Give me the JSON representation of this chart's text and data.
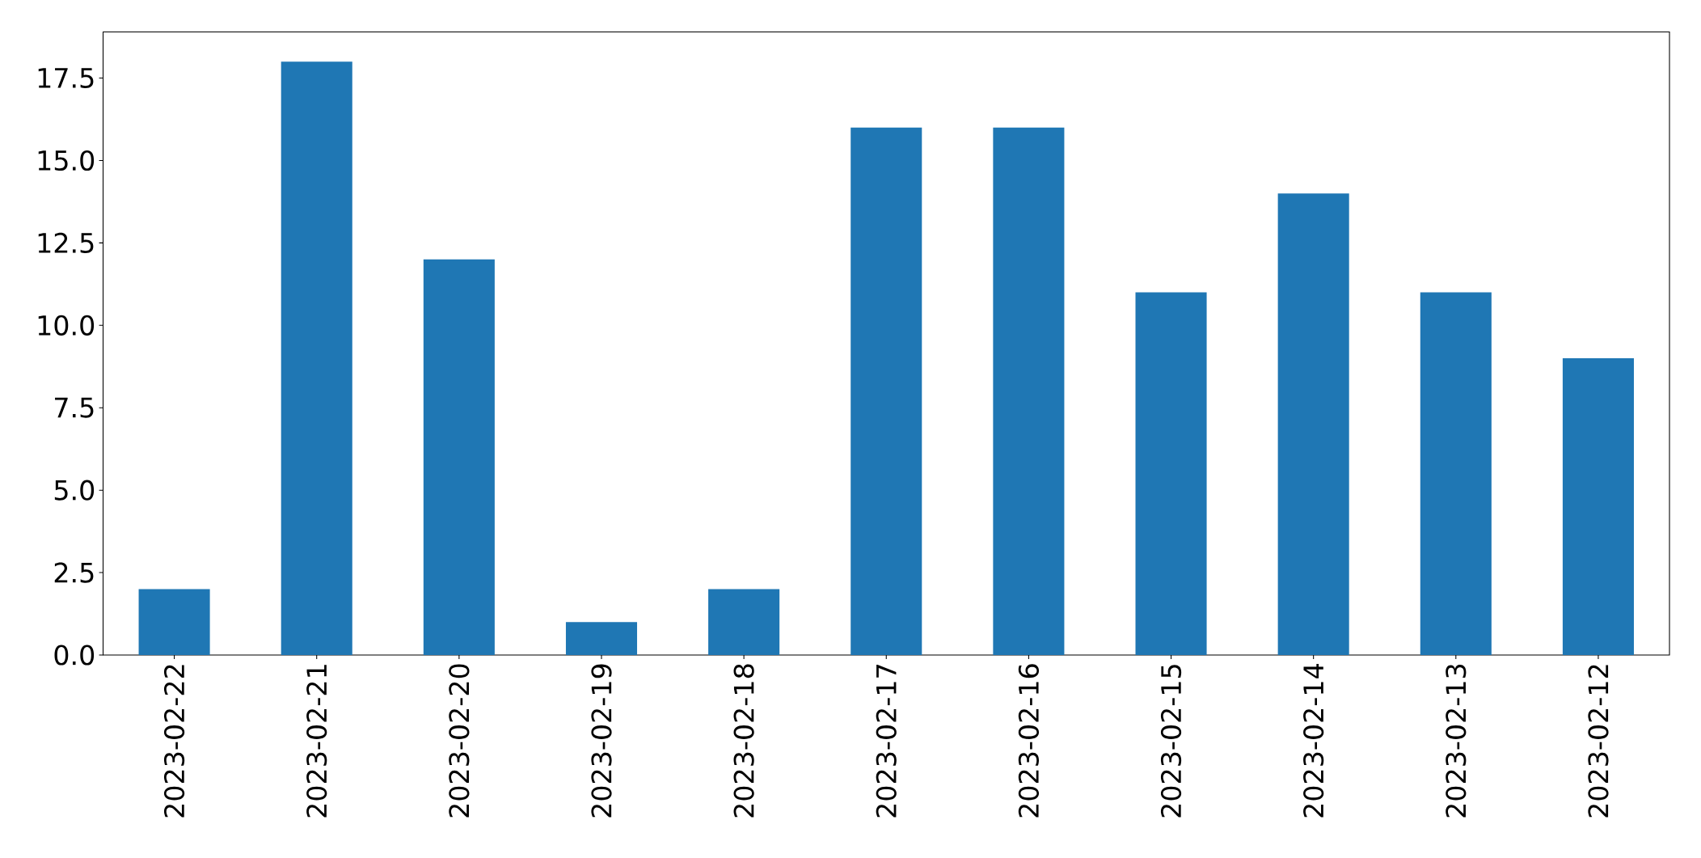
{
  "chart_data": {
    "type": "bar",
    "categories": [
      "2023-02-22",
      "2023-02-21",
      "2023-02-20",
      "2023-02-19",
      "2023-02-18",
      "2023-02-17",
      "2023-02-16",
      "2023-02-15",
      "2023-02-14",
      "2023-02-13",
      "2023-02-12"
    ],
    "values": [
      2,
      18,
      12,
      1,
      2,
      16,
      16,
      11,
      14,
      11,
      9
    ],
    "color": "#1f77b4",
    "ylim": [
      0,
      18.9
    ],
    "yticks": [
      {
        "value": 0,
        "label": "0.0"
      },
      2.5,
      {
        "value": 5,
        "label": "5.0"
      },
      7.5,
      {
        "value": 10,
        "label": "10.0"
      },
      12.5,
      {
        "value": 15,
        "label": "15.0"
      },
      17.5
    ]
  }
}
